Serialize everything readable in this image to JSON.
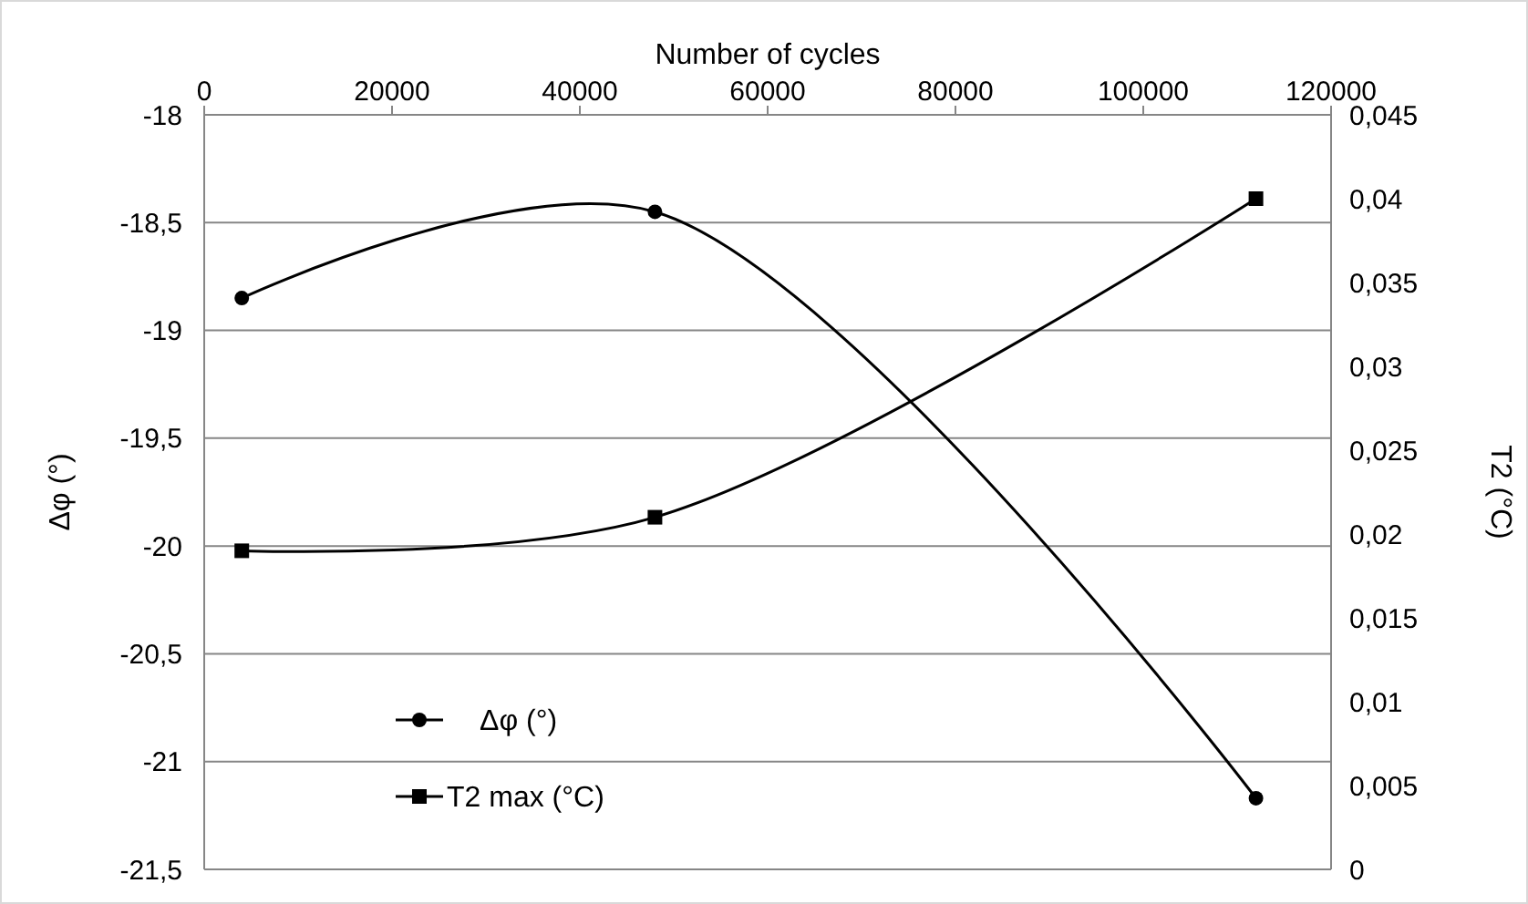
{
  "chart_data": {
    "type": "line",
    "xlabel": "Number of cycles",
    "ylabel": "Δφ (°)",
    "y2label": "T2 (°C)",
    "xlim": [
      0,
      120000
    ],
    "xticks": [
      0,
      20000,
      40000,
      60000,
      80000,
      100000,
      120000
    ],
    "ylim": [
      -21.5,
      -18
    ],
    "yticks": [
      -18,
      {
        "value": -18.5,
        "label": "-18,5"
      },
      -19,
      {
        "value": -19.5,
        "label": "-19,5"
      },
      -20,
      {
        "value": -20.5,
        "label": "-20,5"
      },
      -21,
      {
        "value": -21.5,
        "label": "-21,5"
      }
    ],
    "y2lim": [
      0,
      0.045
    ],
    "y2ticks": [
      0,
      {
        "value": 0.005,
        "label": "0,005"
      },
      {
        "value": 0.01,
        "label": "0,01"
      },
      {
        "value": 0.015,
        "label": "0,015"
      },
      {
        "value": 0.02,
        "label": "0,02"
      },
      {
        "value": 0.025,
        "label": "0,025"
      },
      {
        "value": 0.03,
        "label": "0,03"
      },
      {
        "value": 0.035,
        "label": "0,035"
      },
      {
        "value": 0.04,
        "label": "0,04"
      },
      {
        "value": 0.045,
        "label": "0,045"
      }
    ],
    "x": [
      4000,
      48000,
      112000
    ],
    "series": [
      {
        "name": "Δφ (°)",
        "color": "#000000",
        "values": [
          -18.85,
          -18.45,
          -21.17
        ],
        "marker": "circle"
      },
      {
        "name": "T2 max (°C)",
        "color": "#000000",
        "values": [
          0.019,
          0.021,
          0.04
        ],
        "marker": "square",
        "axis": "y2"
      }
    ],
    "grid": "y",
    "legend": "bottom left",
    "line_style": "solid"
  }
}
